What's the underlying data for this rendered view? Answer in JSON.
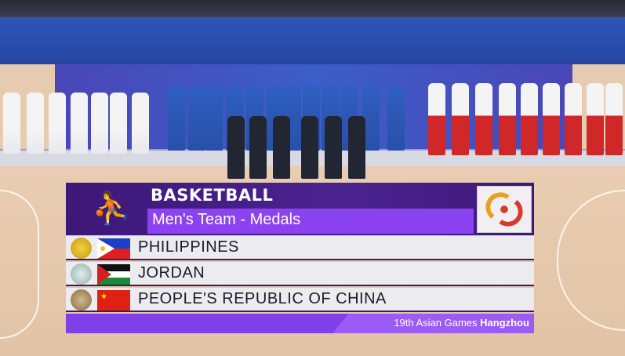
{
  "graphic": {
    "sport": "BASKETBALL",
    "event": "Men's Team - Medals",
    "results": [
      {
        "medal": "gold",
        "country": "PHILIPPINES",
        "flag": "philippines-flag"
      },
      {
        "medal": "silver",
        "country": "JORDAN",
        "flag": "jordan-flag"
      },
      {
        "medal": "bronze",
        "country": "PEOPLE'S REPUBLIC OF CHINA",
        "flag": "china-flag"
      }
    ],
    "footer_prefix": "19th Asian Games",
    "footer_city": "Hangzhou"
  },
  "colors": {
    "header": "#4a2390",
    "event_bar": "#8b42f0",
    "gold": "#d8b21a",
    "silver": "#a9c4c0",
    "bronze": "#a88a5e"
  }
}
